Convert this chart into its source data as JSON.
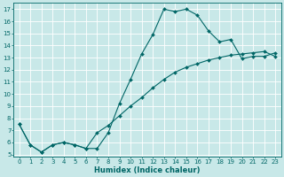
{
  "xlabel": "Humidex (Indice chaleur)",
  "bg_color": "#c8e8e8",
  "grid_color": "#ffffff",
  "line_color": "#006666",
  "xlim": [
    -0.5,
    23.5
  ],
  "ylim": [
    4.8,
    17.5
  ],
  "xticks": [
    0,
    1,
    2,
    3,
    4,
    5,
    6,
    7,
    8,
    9,
    10,
    11,
    12,
    13,
    14,
    15,
    16,
    17,
    18,
    19,
    20,
    21,
    22,
    23
  ],
  "yticks": [
    5,
    6,
    7,
    8,
    9,
    10,
    11,
    12,
    13,
    14,
    15,
    16,
    17
  ],
  "curve1_x": [
    0,
    1,
    2,
    3,
    4,
    5,
    6,
    7,
    8,
    9,
    10,
    11,
    12,
    13,
    14,
    15,
    16,
    17,
    18,
    19,
    20,
    21,
    22,
    23
  ],
  "curve1_y": [
    7.5,
    5.8,
    5.2,
    5.8,
    6.0,
    5.8,
    5.5,
    5.5,
    6.8,
    9.2,
    11.2,
    13.3,
    14.9,
    17.0,
    16.8,
    17.0,
    16.5,
    15.2,
    14.3,
    14.5,
    12.9,
    13.1,
    13.1,
    13.4
  ],
  "curve2_x": [
    0,
    1,
    2,
    3,
    4,
    5,
    6,
    7,
    8,
    9,
    10,
    11,
    12,
    13,
    14,
    15,
    16,
    17,
    18,
    19,
    20,
    21,
    22,
    23
  ],
  "curve2_y": [
    7.5,
    5.8,
    5.2,
    5.8,
    6.0,
    5.8,
    5.5,
    6.8,
    7.4,
    8.2,
    9.0,
    9.7,
    10.5,
    11.2,
    11.8,
    12.2,
    12.5,
    12.8,
    13.0,
    13.2,
    13.3,
    13.4,
    13.5,
    13.1
  ],
  "tick_fontsize": 5.0,
  "xlabel_fontsize": 6.0,
  "marker_size": 2.0,
  "linewidth": 0.8
}
